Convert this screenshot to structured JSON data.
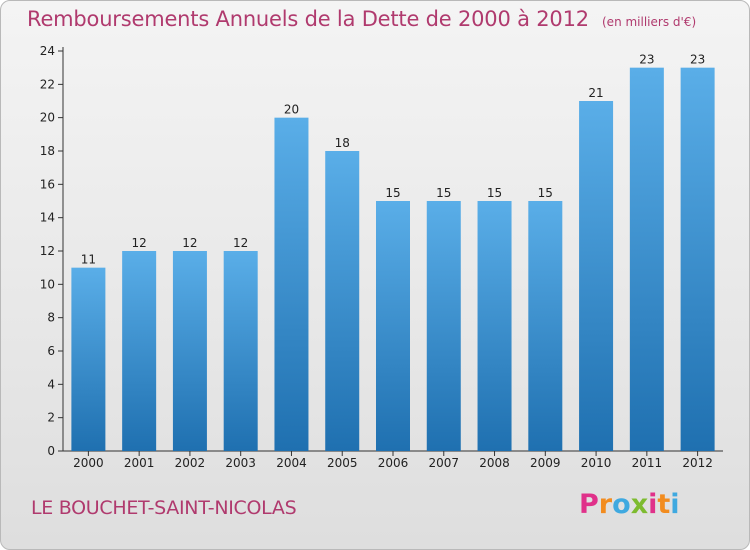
{
  "header": {
    "title": "Remboursements Annuels de la Dette de 2000 à 2012",
    "unit": "(en milliers d'€)"
  },
  "footer": {
    "commune": "LE BOUCHET-SAINT-NICOLAS",
    "logo": [
      "P",
      "r",
      "o",
      "x",
      "i",
      "t",
      "i"
    ],
    "logo_colors": [
      "#e0318a",
      "#f28c1f",
      "#3fa9e0",
      "#7dbb2f",
      "#e0318a",
      "#f28c1f",
      "#3fa9e0"
    ]
  },
  "colors": {
    "bar_light": "#5aaee8",
    "bar_dark": "#1f70b0",
    "title": "#b03a6e"
  },
  "chart_data": {
    "type": "bar",
    "title": "Remboursements Annuels de la Dette de 2000 à 2012",
    "subtitle": "(en milliers d'€)",
    "xlabel": "",
    "ylabel": "",
    "categories": [
      "2000",
      "2001",
      "2002",
      "2003",
      "2004",
      "2005",
      "2006",
      "2007",
      "2008",
      "2009",
      "2010",
      "2011",
      "2012"
    ],
    "values": [
      11,
      12,
      12,
      12,
      20,
      18,
      15,
      15,
      15,
      15,
      21,
      23,
      23
    ],
    "ylim": [
      0,
      24
    ],
    "yticks": [
      0,
      2,
      4,
      6,
      8,
      10,
      12,
      14,
      16,
      18,
      20,
      22,
      24
    ],
    "grid": false,
    "legend": "none"
  }
}
